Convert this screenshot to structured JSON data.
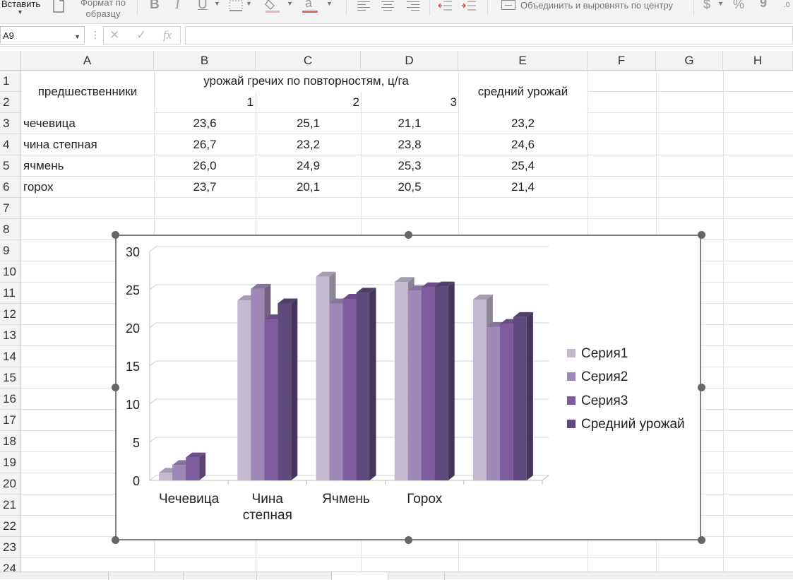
{
  "ribbon": {
    "paste_label": "Вставить",
    "format_painter_label_1": "Формат по",
    "format_painter_label_2": "образцу",
    "bold": "B",
    "italic": "I",
    "underline": "U",
    "font_color_letter": "a",
    "merge_label": "Объединить и выровнять по центру",
    "currency": "$",
    "percent": "%",
    "comma": "9",
    "fill_color": "#e8b4b8",
    "font_color": "#e06666"
  },
  "formula_bar": {
    "name_box": "A9",
    "cancel_icon": "✕",
    "enter_icon": "✓",
    "fx_icon": "fx",
    "value": ""
  },
  "columns": [
    "A",
    "B",
    "C",
    "D",
    "E",
    "F",
    "G",
    "H"
  ],
  "rows": [
    "1",
    "2",
    "3",
    "4",
    "5",
    "6",
    "7",
    "8",
    "9",
    "10",
    "11",
    "12",
    "13",
    "14",
    "15",
    "16",
    "17",
    "18",
    "19",
    "20",
    "21",
    "22",
    "23",
    "24"
  ],
  "table": {
    "header_predecessors": "предшественники",
    "header_yield_by_repeats": "урожай гречих по повторностям, ц/га",
    "header_avg_yield": "средний урожай",
    "repeat_numbers": [
      "1",
      "2",
      "3"
    ],
    "data_rows": [
      {
        "name": "чечевица",
        "r1": "23,6",
        "r2": "25,1",
        "r3": "21,1",
        "avg": "23,2"
      },
      {
        "name": "чина степная",
        "r1": "26,7",
        "r2": "23,2",
        "r3": "23,8",
        "avg": "24,6"
      },
      {
        "name": "ячмень",
        "r1": "26,0",
        "r2": "24,9",
        "r3": "25,3",
        "avg": "25,4"
      },
      {
        "name": "горох",
        "r1": "23,7",
        "r2": "20,1",
        "r3": "20,5",
        "avg": "21,4"
      }
    ]
  },
  "chart_data": {
    "type": "bar",
    "style": "3d-clustered-column",
    "categories": [
      "Чечевица",
      "Чина степная",
      "Ячмень",
      "Горох",
      ""
    ],
    "series": [
      {
        "name": "Серия1",
        "color": "#c3b9d1",
        "values": [
          1,
          23.6,
          26.7,
          26.0,
          23.7
        ]
      },
      {
        "name": "Серия2",
        "color": "#9d88b7",
        "values": [
          2,
          25.1,
          23.2,
          24.9,
          20.1
        ]
      },
      {
        "name": "Серия3",
        "color": "#7d5d9e",
        "values": [
          3,
          21.1,
          23.8,
          25.3,
          20.5
        ]
      },
      {
        "name": "Средний урожай",
        "color": "#5f4a7d",
        "values": [
          null,
          23.2,
          24.6,
          25.4,
          21.4
        ]
      }
    ],
    "y_ticks": [
      "0",
      "5",
      "10",
      "15",
      "20",
      "25",
      "30"
    ],
    "ylim": [
      0,
      30
    ],
    "grid": true,
    "legend_position": "right"
  }
}
